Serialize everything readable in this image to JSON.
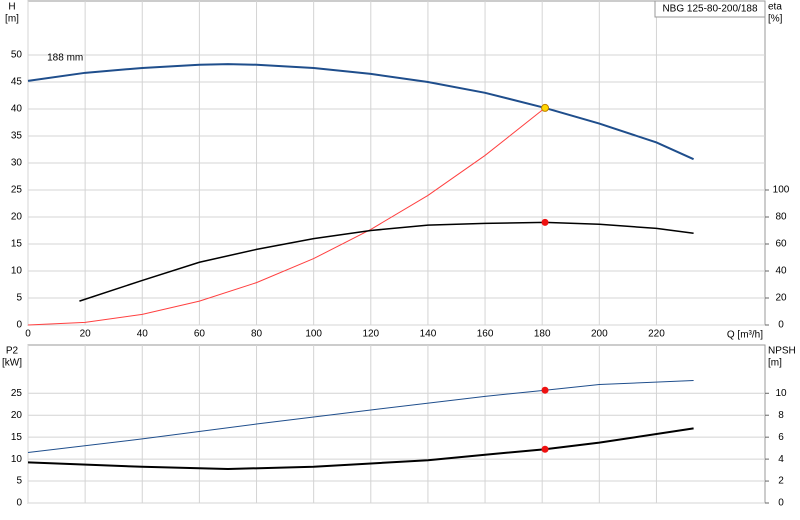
{
  "chart_data": [
    {
      "type": "line",
      "title": "NBG 125-80-200/188",
      "y_label": "H",
      "y_unit": "[m]",
      "y2_label": "eta",
      "y2_unit": "[%]",
      "x_label": "Q [m³/h]",
      "xlim": [
        0,
        258
      ],
      "xticks": [
        0,
        20,
        40,
        60,
        80,
        100,
        120,
        140,
        160,
        180,
        200,
        220
      ],
      "xtick_labels": true,
      "ylim": [
        0,
        60
      ],
      "yticks": [
        0,
        5,
        10,
        15,
        20,
        25,
        30,
        35,
        40,
        45,
        50
      ],
      "y2lim": [
        0,
        240
      ],
      "y2ticks": [
        0,
        20,
        40,
        60,
        80,
        100
      ],
      "grid": true,
      "curve_label": "188 mm",
      "series": [
        {
          "color": "#1f4e8c",
          "line_width": 2,
          "x": [
            0,
            20,
            40,
            60,
            70,
            80,
            100,
            120,
            140,
            160,
            181,
            200,
            220,
            233
          ],
          "values": [
            45.2,
            46.7,
            47.6,
            48.2,
            48.3,
            48.2,
            47.6,
            46.5,
            45,
            43,
            40.2,
            37.3,
            33.8,
            30.7
          ]
        },
        {
          "color": "#ff4040",
          "line_width": 1,
          "x": [
            0,
            20,
            40,
            60,
            80,
            100,
            120,
            140,
            160,
            181
          ],
          "values": [
            0,
            0.49,
            1.96,
            4.42,
            7.85,
            12.3,
            17.7,
            24,
            31.4,
            40.2
          ]
        },
        {
          "color": "#000000",
          "line_width": 1.5,
          "axis": "y2",
          "x": [
            18,
            40,
            60,
            80,
            100,
            120,
            140,
            160,
            181,
            200,
            220,
            233
          ],
          "values": [
            17.7,
            33,
            46.5,
            56,
            64,
            70,
            74,
            75.3,
            76,
            74.6,
            71.6,
            68
          ]
        },
        {
          "color": "#ffd700",
          "marker": "circle",
          "x": [
            181
          ],
          "values": [
            40.2
          ]
        },
        {
          "color": "#ee1111",
          "marker": "circle",
          "axis": "y2",
          "x": [
            181
          ],
          "values": [
            76
          ]
        }
      ]
    },
    {
      "type": "line",
      "y_label": "P2",
      "y_unit": "[kW]",
      "y2_label": "NPSH",
      "y2_unit": "[m]",
      "xlim": [
        0,
        258
      ],
      "xticks": [
        0,
        20,
        40,
        60,
        80,
        100,
        120,
        140,
        160,
        180,
        200,
        220
      ],
      "xtick_labels": false,
      "ylim": [
        0,
        36
      ],
      "yticks": [
        0,
        5,
        10,
        15,
        20,
        25
      ],
      "y2lim": [
        0,
        14.4
      ],
      "y2ticks": [
        0,
        2,
        4,
        6,
        8,
        10
      ],
      "grid": true,
      "series": [
        {
          "color": "#1f4e8c",
          "line_width": 1,
          "x": [
            0,
            40,
            80,
            120,
            160,
            181,
            200,
            233
          ],
          "values": [
            11.5,
            14.6,
            18,
            21.2,
            24.3,
            25.7,
            27,
            27.9
          ]
        },
        {
          "color": "#000000",
          "line_width": 2,
          "axis": "y2",
          "x": [
            0,
            40,
            70,
            100,
            140,
            160,
            181,
            200,
            233
          ],
          "values": [
            3.7,
            3.3,
            3.1,
            3.3,
            3.9,
            4.4,
            4.9,
            5.5,
            6.8
          ]
        },
        {
          "color": "#ee1111",
          "marker": "circle",
          "x": [
            181
          ],
          "values": [
            25.7
          ]
        },
        {
          "color": "#ee1111",
          "marker": "circle",
          "axis": "y2",
          "x": [
            181
          ],
          "values": [
            4.9
          ]
        }
      ]
    }
  ]
}
